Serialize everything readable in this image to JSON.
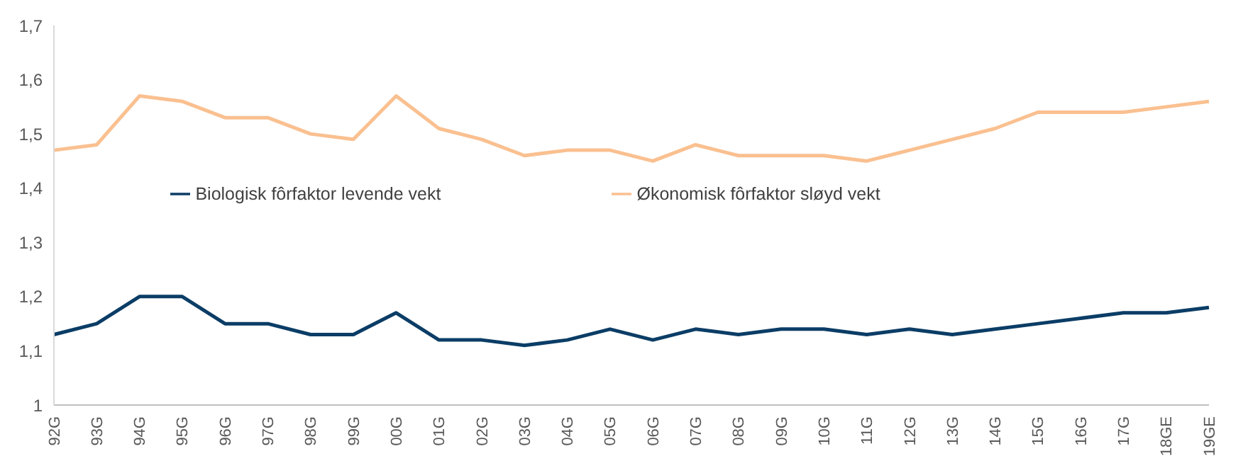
{
  "chart_data": {
    "type": "line",
    "categories": [
      "92G",
      "93G",
      "94G",
      "95G",
      "96G",
      "97G",
      "98G",
      "99G",
      "00G",
      "01G",
      "02G",
      "03G",
      "04G",
      "05G",
      "06G",
      "07G",
      "08G",
      "09G",
      "10G",
      "11G",
      "12G",
      "13G",
      "14G",
      "15G",
      "16G",
      "17G",
      "18GE",
      "19GE"
    ],
    "series": [
      {
        "name": "Biologisk fôrfaktor levende vekt",
        "color": "#0b3d66",
        "values": [
          1.13,
          1.15,
          1.2,
          1.2,
          1.15,
          1.15,
          1.13,
          1.13,
          1.17,
          1.12,
          1.12,
          1.11,
          1.12,
          1.14,
          1.12,
          1.14,
          1.13,
          1.14,
          1.14,
          1.13,
          1.14,
          1.13,
          1.14,
          1.15,
          1.16,
          1.17,
          1.17,
          1.18
        ]
      },
      {
        "name": "Økonomisk fôrfaktor sløyd vekt",
        "color": "#fac090",
        "values": [
          1.47,
          1.48,
          1.57,
          1.56,
          1.53,
          1.53,
          1.5,
          1.49,
          1.57,
          1.51,
          1.49,
          1.46,
          1.47,
          1.47,
          1.45,
          1.48,
          1.46,
          1.46,
          1.46,
          1.45,
          1.47,
          1.49,
          1.51,
          1.54,
          1.54,
          1.54,
          1.55,
          1.56
        ]
      }
    ],
    "ylim": [
      1,
      1.7
    ],
    "yticks": [
      {
        "value": 1,
        "label": "1"
      },
      {
        "value": 1.1,
        "label": "1,1"
      },
      {
        "value": 1.2,
        "label": "1,2"
      },
      {
        "value": 1.3,
        "label": "1,3"
      },
      {
        "value": 1.4,
        "label": "1,4"
      },
      {
        "value": 1.5,
        "label": "1,5"
      },
      {
        "value": 1.6,
        "label": "1,6"
      },
      {
        "value": 1.7,
        "label": "1,7"
      }
    ],
    "grid": false,
    "legend": "center",
    "marker": "none",
    "line_style": "solid"
  }
}
